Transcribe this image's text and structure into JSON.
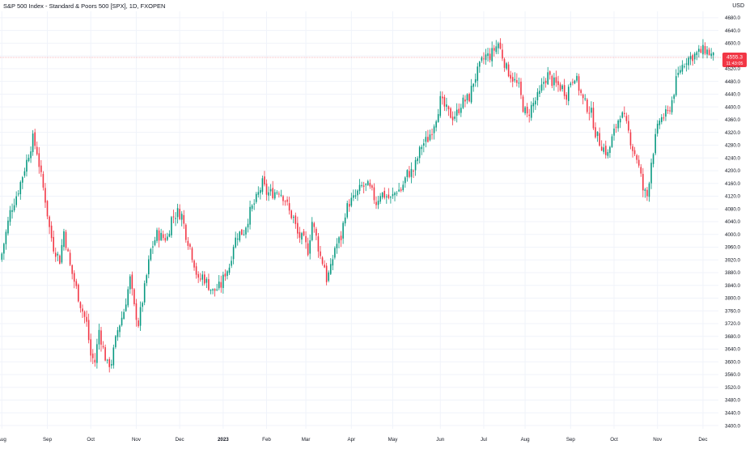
{
  "title": "S&P 500 Index - Standard & Poors 500 [SPX], 1D, FXOPEN",
  "currency": "USD",
  "colors": {
    "up": "#089981",
    "down": "#f23645",
    "grid": "#f0f3fa",
    "axis_text": "#131722",
    "price_line": "#f23645"
  },
  "chart_data": {
    "type": "candlestick",
    "title": "S&P 500 Index - Standard & Poors 500 [SPX], 1D, FXOPEN",
    "ylabel": "USD",
    "ylim": [
      3400,
      4680
    ],
    "y_ticks": [
      3400,
      3440,
      3480,
      3520,
      3560,
      3600,
      3640,
      3680,
      3720,
      3760,
      3800,
      3840,
      3880,
      3920,
      3960,
      4000,
      4040,
      4080,
      4120,
      4160,
      4200,
      4240,
      4280,
      4320,
      4360,
      4400,
      4440,
      4480,
      4520,
      4560,
      4600,
      4640,
      4680
    ],
    "x_ticks": [
      "Aug",
      "Sep",
      "Oct",
      "Nov",
      "Dec",
      "2023",
      "Feb",
      "Mar",
      "Apr",
      "May",
      "Jun",
      "Jul",
      "Aug",
      "Sep",
      "Oct",
      "Nov",
      "Dec"
    ],
    "x_tick_positions": [
      0,
      22,
      43,
      65,
      86,
      107,
      128,
      147,
      169,
      189,
      212,
      233,
      253,
      275,
      296,
      317,
      339
    ],
    "last_price": {
      "value": 4555.3,
      "label": "4555.3",
      "countdown": "11:43:05"
    },
    "close_path": [
      [
        0,
        3940
      ],
      [
        4,
        4070
      ],
      [
        8,
        4140
      ],
      [
        12,
        4230
      ],
      [
        15,
        4300
      ],
      [
        17,
        4260
      ],
      [
        19,
        4180
      ],
      [
        21,
        4110
      ],
      [
        23,
        4020
      ],
      [
        25,
        3960
      ],
      [
        28,
        3920
      ],
      [
        30,
        4010
      ],
      [
        33,
        3900
      ],
      [
        36,
        3830
      ],
      [
        38,
        3780
      ],
      [
        41,
        3720
      ],
      [
        43,
        3620
      ],
      [
        45,
        3600
      ],
      [
        47,
        3700
      ],
      [
        49,
        3640
      ],
      [
        51,
        3590
      ],
      [
        53,
        3600
      ],
      [
        56,
        3700
      ],
      [
        59,
        3760
      ],
      [
        62,
        3860
      ],
      [
        64,
        3770
      ],
      [
        66,
        3720
      ],
      [
        69,
        3830
      ],
      [
        72,
        3950
      ],
      [
        75,
        4000
      ],
      [
        78,
        3990
      ],
      [
        80,
        3990
      ],
      [
        82,
        4050
      ],
      [
        85,
        4070
      ],
      [
        87,
        4060
      ],
      [
        89,
        4000
      ],
      [
        91,
        3960
      ],
      [
        93,
        3910
      ],
      [
        95,
        3850
      ],
      [
        97,
        3870
      ],
      [
        99,
        3850
      ],
      [
        102,
        3820
      ],
      [
        104,
        3830
      ],
      [
        106,
        3840
      ],
      [
        108,
        3880
      ],
      [
        110,
        3900
      ],
      [
        112,
        3970
      ],
      [
        114,
        4000
      ],
      [
        117,
        4010
      ],
      [
        120,
        4070
      ],
      [
        123,
        4110
      ],
      [
        126,
        4160
      ],
      [
        128,
        4130
      ],
      [
        131,
        4130
      ],
      [
        134,
        4140
      ],
      [
        137,
        4110
      ],
      [
        139,
        4070
      ],
      [
        141,
        4050
      ],
      [
        143,
        4000
      ],
      [
        146,
        3980
      ],
      [
        148,
        3950
      ],
      [
        150,
        4040
      ],
      [
        152,
        3990
      ],
      [
        154,
        3930
      ],
      [
        156,
        3900
      ],
      [
        157,
        3860
      ],
      [
        159,
        3890
      ],
      [
        161,
        3960
      ],
      [
        164,
        3990
      ],
      [
        166,
        4070
      ],
      [
        168,
        4100
      ],
      [
        170,
        4110
      ],
      [
        172,
        4130
      ],
      [
        174,
        4150
      ],
      [
        177,
        4150
      ],
      [
        179,
        4130
      ],
      [
        181,
        4100
      ],
      [
        183,
        4130
      ],
      [
        186,
        4120
      ],
      [
        188,
        4110
      ],
      [
        191,
        4140
      ],
      [
        193,
        4140
      ],
      [
        196,
        4190
      ],
      [
        199,
        4200
      ],
      [
        201,
        4240
      ],
      [
        203,
        4280
      ],
      [
        206,
        4300
      ],
      [
        208,
        4330
      ],
      [
        210,
        4370
      ],
      [
        212,
        4420
      ],
      [
        214,
        4400
      ],
      [
        216,
        4380
      ],
      [
        218,
        4370
      ],
      [
        220,
        4380
      ],
      [
        222,
        4410
      ],
      [
        224,
        4420
      ],
      [
        226,
        4430
      ],
      [
        228,
        4480
      ],
      [
        230,
        4510
      ],
      [
        232,
        4540
      ],
      [
        234,
        4560
      ],
      [
        236,
        4560
      ],
      [
        238,
        4580
      ],
      [
        240,
        4600
      ],
      [
        242,
        4560
      ],
      [
        244,
        4520
      ],
      [
        246,
        4500
      ],
      [
        248,
        4480
      ],
      [
        250,
        4460
      ],
      [
        252,
        4400
      ],
      [
        254,
        4370
      ],
      [
        256,
        4400
      ],
      [
        258,
        4420
      ],
      [
        260,
        4440
      ],
      [
        262,
        4480
      ],
      [
        264,
        4500
      ],
      [
        266,
        4480
      ],
      [
        268,
        4470
      ],
      [
        271,
        4460
      ],
      [
        273,
        4440
      ],
      [
        275,
        4480
      ],
      [
        277,
        4500
      ],
      [
        279,
        4460
      ],
      [
        281,
        4420
      ],
      [
        283,
        4400
      ],
      [
        285,
        4380
      ],
      [
        287,
        4320
      ],
      [
        289,
        4290
      ],
      [
        291,
        4270
      ],
      [
        293,
        4250
      ],
      [
        295,
        4300
      ],
      [
        297,
        4340
      ],
      [
        299,
        4380
      ],
      [
        301,
        4360
      ],
      [
        303,
        4320
      ],
      [
        305,
        4270
      ],
      [
        307,
        4240
      ],
      [
        309,
        4180
      ],
      [
        310,
        4140
      ],
      [
        312,
        4120
      ],
      [
        314,
        4230
      ],
      [
        316,
        4300
      ],
      [
        318,
        4360
      ],
      [
        320,
        4370
      ],
      [
        322,
        4380
      ],
      [
        324,
        4420
      ],
      [
        326,
        4480
      ],
      [
        328,
        4520
      ],
      [
        331,
        4550
      ],
      [
        334,
        4560
      ],
      [
        337,
        4570
      ],
      [
        340,
        4580
      ],
      [
        342,
        4570
      ],
      [
        344,
        4555
      ]
    ],
    "grid": "light",
    "legend": "none"
  }
}
